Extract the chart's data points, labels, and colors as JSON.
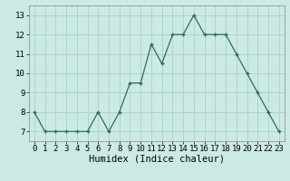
{
  "x": [
    0,
    1,
    2,
    3,
    4,
    5,
    6,
    7,
    8,
    9,
    10,
    11,
    12,
    13,
    14,
    15,
    16,
    17,
    18,
    19,
    20,
    21,
    22,
    23
  ],
  "y": [
    8,
    7,
    7,
    7,
    7,
    7,
    8,
    7,
    8,
    9.5,
    9.5,
    11.5,
    10.5,
    12,
    12,
    13,
    12,
    12,
    12,
    11,
    10,
    9,
    8,
    7
  ],
  "line_color": "#2e6b5e",
  "bg_color": "#cceae4",
  "grid_color": "#aed4cc",
  "xlabel": "Humidex (Indice chaleur)",
  "ylim": [
    6.5,
    13.5
  ],
  "xlim": [
    -0.5,
    23.5
  ],
  "yticks": [
    7,
    8,
    9,
    10,
    11,
    12,
    13
  ],
  "xticks": [
    0,
    1,
    2,
    3,
    4,
    5,
    6,
    7,
    8,
    9,
    10,
    11,
    12,
    13,
    14,
    15,
    16,
    17,
    18,
    19,
    20,
    21,
    22,
    23
  ],
  "label_fontsize": 7.5,
  "tick_fontsize": 6.5
}
